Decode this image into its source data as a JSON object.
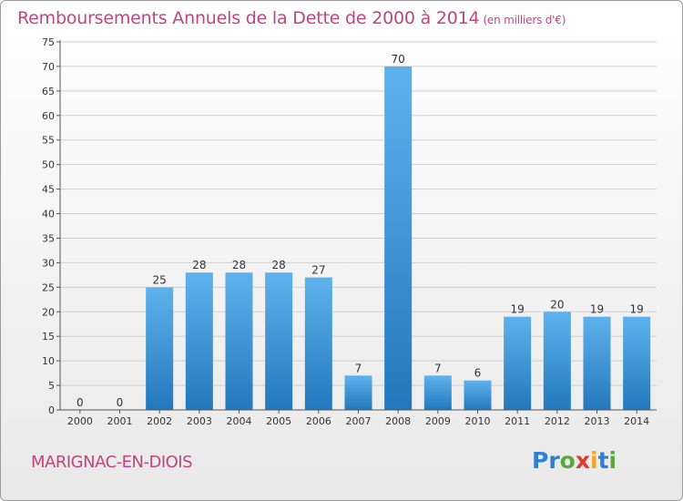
{
  "chart": {
    "title": "Remboursements Annuels de la Dette de 2000 à 2014",
    "unit": "(en milliers d'€)"
  },
  "footer": {
    "commune": "MARIGNAC-EN-DIOIS",
    "brand_letters": [
      {
        "ch": "P",
        "color": "#2f7fd0"
      },
      {
        "ch": "r",
        "color": "#2f7fd0"
      },
      {
        "ch": "o",
        "color": "#5aa83a"
      },
      {
        "ch": "x",
        "color": "#e03a2e"
      },
      {
        "ch": "i",
        "color": "#f0a81c"
      },
      {
        "ch": "t",
        "color": "#2f7fd0"
      },
      {
        "ch": "i",
        "color": "#5aa83a"
      }
    ]
  },
  "colors": {
    "title": "#c0457d",
    "bar_top": "#5eb2ec",
    "bar_bottom": "#2378bd",
    "grid": "#cfcfcf"
  },
  "chart_data": {
    "type": "bar",
    "title": "Remboursements Annuels de la Dette de 2000 à 2014",
    "subtitle": "(en milliers d'€)",
    "categories": [
      "2000",
      "2001",
      "2002",
      "2003",
      "2004",
      "2005",
      "2006",
      "2007",
      "2008",
      "2009",
      "2010",
      "2011",
      "2012",
      "2013",
      "2014"
    ],
    "values": [
      0,
      0,
      25,
      28,
      28,
      28,
      27,
      7,
      70,
      7,
      6,
      19,
      20,
      19,
      19
    ],
    "ylim": [
      0,
      75
    ],
    "yticks": [
      0,
      5,
      10,
      15,
      20,
      25,
      30,
      35,
      40,
      45,
      50,
      55,
      60,
      65,
      70,
      75
    ],
    "xlabel": "",
    "ylabel": "",
    "grid": true,
    "data_labels": true
  }
}
